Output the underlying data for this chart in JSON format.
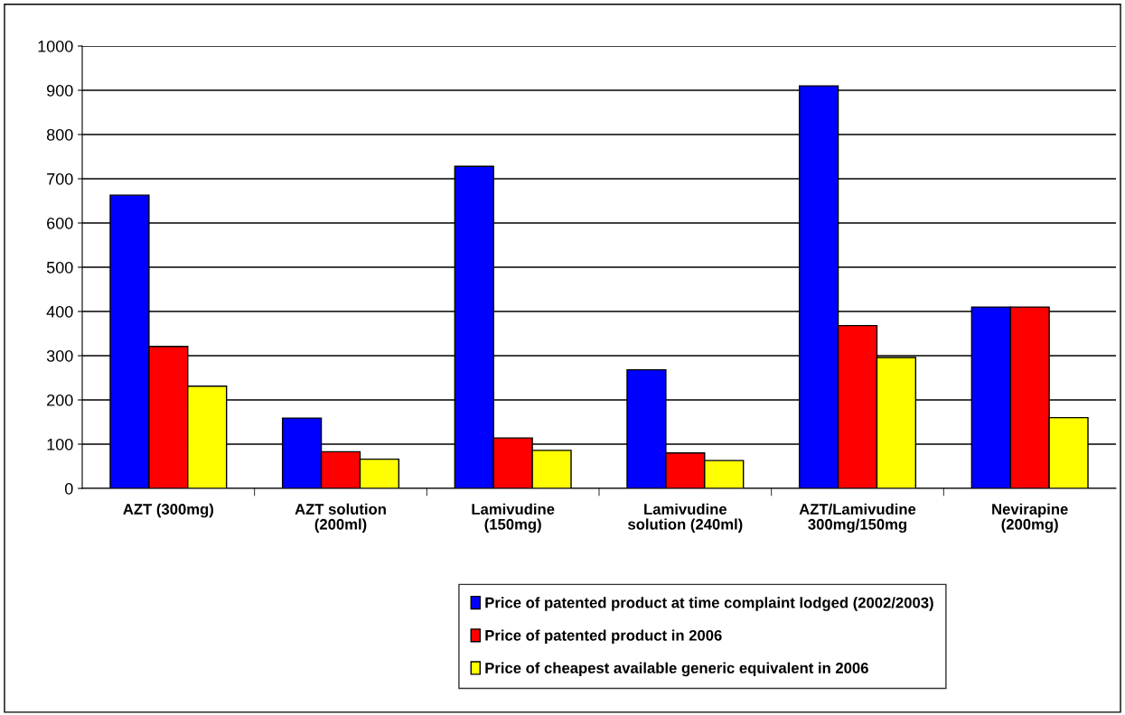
{
  "chart_data": {
    "type": "bar",
    "categories": [
      "AZT (300mg)",
      "AZT solution\n(200ml)",
      "Lamivudine\n(150mg)",
      "Lamivudine\nsolution (240ml)",
      "AZT/Lamivudine\n300mg/150mg",
      "Nevirapine\n(200mg)"
    ],
    "series": [
      {
        "name": "Price of patented product at time complaint lodged (2002/2003)",
        "color": "#0000ff",
        "values": [
          663,
          159,
          728,
          268,
          910,
          410
        ]
      },
      {
        "name": "Price of patented product in 2006",
        "color": "#ff0000",
        "values": [
          321,
          83,
          114,
          80,
          368,
          410
        ]
      },
      {
        "name": "Price of cheapest available generic equivalent in 2006",
        "color": "#ffff00",
        "values": [
          231,
          66,
          86,
          63,
          296,
          160
        ]
      }
    ],
    "ylim": [
      0,
      1000
    ],
    "yticks": [
      0,
      100,
      200,
      300,
      400,
      500,
      600,
      700,
      800,
      900,
      1000
    ],
    "grid": "y",
    "legend": "bottom"
  }
}
